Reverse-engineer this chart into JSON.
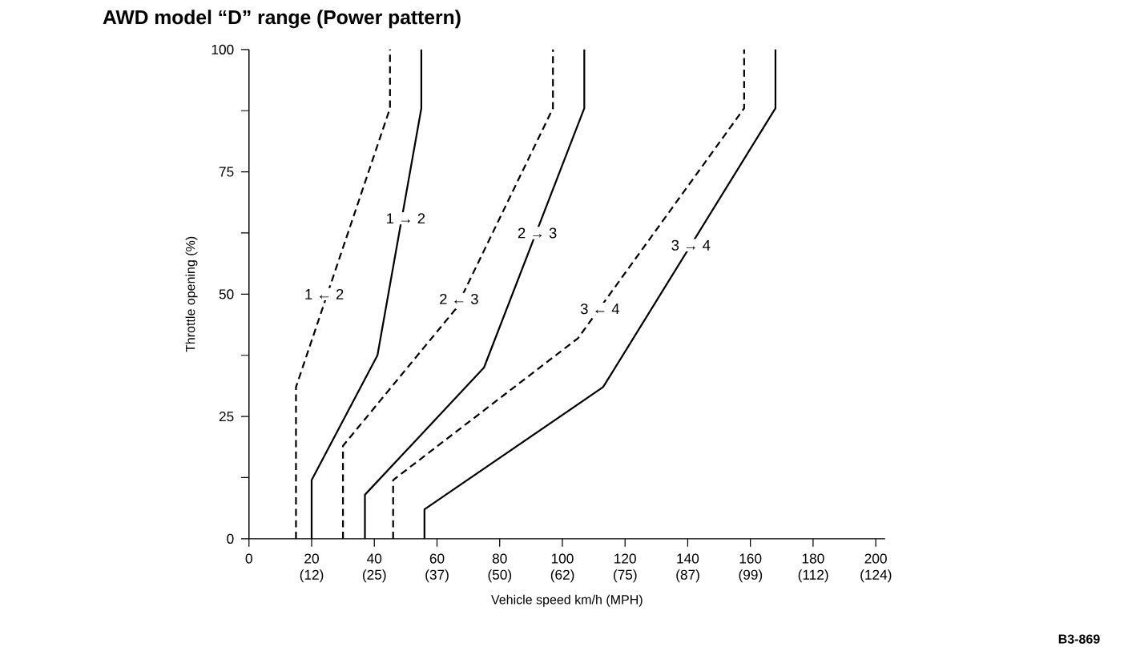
{
  "chart_data": {
    "type": "line",
    "title": "AWD model “D” range (Power pattern)",
    "xlabel": "Vehicle speed km/h (MPH)",
    "ylabel": "Throttle opening (%)",
    "xlim": [
      0,
      203
    ],
    "ylim": [
      0,
      100
    ],
    "xticks": [
      0,
      20,
      40,
      60,
      80,
      100,
      120,
      140,
      160,
      180,
      200
    ],
    "x2lim": [
      0,
      126.1
    ],
    "x2ticks": [
      {
        "value": 12.43,
        "label": "(12)"
      },
      {
        "value": 24.85,
        "label": "(25)"
      },
      {
        "value": 37.28,
        "label": "(37)"
      },
      {
        "value": 49.71,
        "label": "(50)"
      },
      {
        "value": 62.14,
        "label": "(62)"
      },
      {
        "value": 74.56,
        "label": "(75)"
      },
      {
        "value": 86.99,
        "label": "(87)"
      },
      {
        "value": 99.42,
        "label": "(99)"
      },
      {
        "value": 111.85,
        "label": "(112)"
      },
      {
        "value": 124.27,
        "label": "(124)"
      }
    ],
    "yticks": [
      0,
      {
        "value": 12.5,
        "label": null
      },
      25,
      {
        "value": 37.5,
        "label": null
      },
      50,
      {
        "value": 62.5,
        "label": null
      },
      75,
      {
        "value": 87.5,
        "label": null
      },
      100
    ],
    "marker": "none",
    "series": [
      {
        "color": "#000000",
        "line_style": "dashed",
        "x": [
          15,
          15,
          45,
          45
        ],
        "values": [
          0,
          31,
          88,
          100
        ]
      },
      {
        "color": "#000000",
        "line_style": "solid",
        "x": [
          20,
          20,
          41,
          55,
          55
        ],
        "values": [
          0,
          12,
          37.5,
          88,
          100
        ]
      },
      {
        "color": "#000000",
        "line_style": "dashed",
        "x": [
          30,
          30,
          66,
          97,
          97
        ],
        "values": [
          0,
          19,
          47,
          88,
          100
        ]
      },
      {
        "color": "#000000",
        "line_style": "solid",
        "x": [
          37,
          37,
          75,
          107,
          107
        ],
        "values": [
          0,
          9,
          35,
          88,
          100
        ]
      },
      {
        "color": "#000000",
        "line_style": "dashed",
        "x": [
          46,
          46,
          105,
          158,
          158
        ],
        "values": [
          0,
          12,
          41,
          88,
          100
        ]
      },
      {
        "color": "#000000",
        "line_style": "solid",
        "x": [
          56,
          56,
          113,
          168,
          168
        ],
        "values": [
          0,
          6,
          31,
          88,
          100
        ]
      }
    ],
    "annotations": [
      {
        "text": "1 ← 2",
        "x": 24,
        "y": 50
      },
      {
        "text": "1 → 2",
        "x": 50,
        "y": 65.5
      },
      {
        "text": "2 ← 3",
        "x": 67,
        "y": 49
      },
      {
        "text": "2 → 3",
        "x": 92,
        "y": 62.5
      },
      {
        "text": "3 ← 4",
        "x": 112,
        "y": 47
      },
      {
        "text": "3 → 4",
        "x": 141,
        "y": 60
      },
      "B3-869"
    ]
  }
}
